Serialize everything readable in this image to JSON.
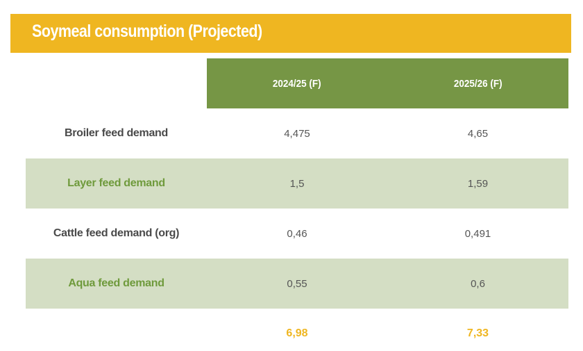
{
  "title": "Soymeal consumption (Projected)",
  "columns": [
    "2024/25 (F)",
    "2025/26 (F)"
  ],
  "rows": [
    {
      "label": "Broiler feed demand",
      "v2024": "4,475",
      "v2025": "4,65"
    },
    {
      "label": "Layer feed demand",
      "v2024": "1,5",
      "v2025": "1,59"
    },
    {
      "label": "Cattle feed demand (org)",
      "v2024": "0,46",
      "v2025": "0,491"
    },
    {
      "label": "Aqua feed demand",
      "v2024": "0,55",
      "v2025": "0,6"
    }
  ],
  "totals": {
    "v2024": "6,98",
    "v2025": "7,33"
  },
  "colors": {
    "title_bar": "#efb621",
    "header": "#769645",
    "shaded_row": "#d4dec4",
    "green_label": "#6f9a3c",
    "total_text": "#efb621"
  }
}
